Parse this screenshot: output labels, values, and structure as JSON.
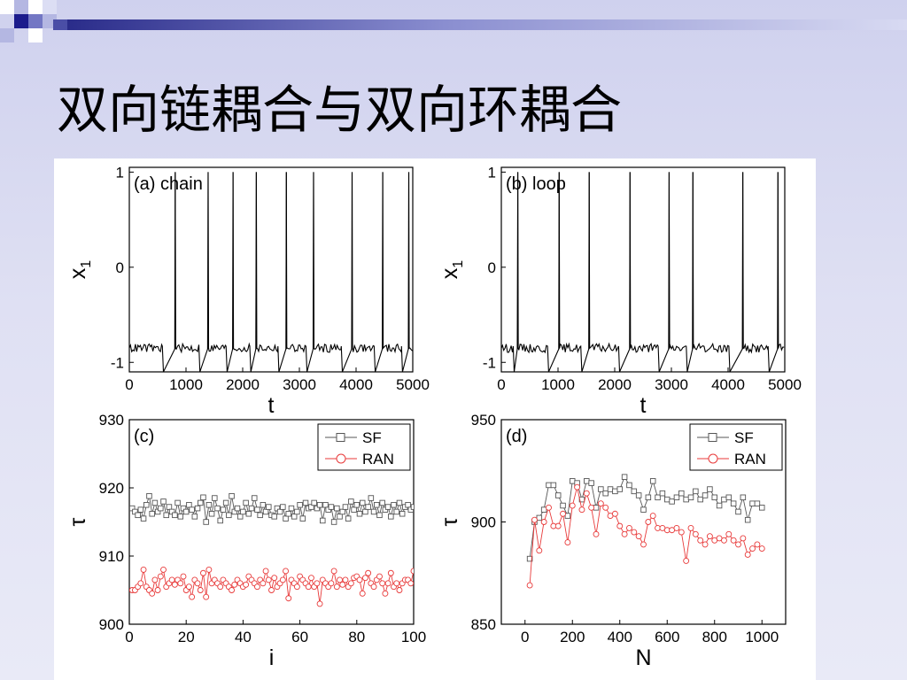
{
  "slide": {
    "title": "双向链耦合与双向环耦合",
    "colors": {
      "accent_dark": "#1c1c8c",
      "accent_mid": "#7377c4",
      "accent_light": "#b4b7e2"
    }
  },
  "chart_data": [
    {
      "panel_label": "(a) chain",
      "type": "line",
      "xlabel": "t",
      "ylabel": "x",
      "ylabel_subscript": "1",
      "xlim": [
        0,
        5000
      ],
      "ylim": [
        -1.1,
        1.05
      ],
      "xticks": [
        0,
        1000,
        2000,
        3000,
        4000,
        5000
      ],
      "yticks": [
        -1,
        0,
        1
      ],
      "spike_times": [
        810,
        1390,
        1830,
        2240,
        2770,
        3250,
        3930,
        4470,
        4930
      ],
      "baseline": -0.85,
      "trough": -1.1,
      "peak": 1.0,
      "color": "#000000"
    },
    {
      "panel_label": "(b) loop",
      "type": "line",
      "xlabel": "t",
      "ylabel": "x",
      "ylabel_subscript": "1",
      "xlim": [
        0,
        5000
      ],
      "ylim": [
        -1.1,
        1.05
      ],
      "xticks": [
        0,
        1000,
        2000,
        3000,
        4000,
        5000
      ],
      "yticks": [
        -1,
        0,
        1
      ],
      "spike_times": [
        290,
        1020,
        1550,
        2270,
        2960,
        3380,
        4260,
        4880
      ],
      "baseline": -0.85,
      "trough": -1.1,
      "peak": 1.0,
      "color": "#000000"
    },
    {
      "panel_label": "(c)",
      "type": "line",
      "xlabel": "i",
      "ylabel": "τ",
      "xlim": [
        0,
        100
      ],
      "ylim": [
        900,
        930
      ],
      "xticks": [
        0,
        20,
        40,
        60,
        80,
        100
      ],
      "yticks": [
        900,
        910,
        920,
        930
      ],
      "legend_position": "top-right",
      "series": [
        {
          "name": "SF",
          "marker": "square",
          "color": "#555555",
          "x": [
            1,
            2,
            3,
            4,
            5,
            6,
            7,
            8,
            9,
            10,
            11,
            12,
            13,
            14,
            15,
            16,
            17,
            18,
            19,
            20,
            21,
            22,
            23,
            24,
            25,
            26,
            27,
            28,
            29,
            30,
            31,
            32,
            33,
            34,
            35,
            36,
            37,
            38,
            39,
            40,
            41,
            42,
            43,
            44,
            45,
            46,
            47,
            48,
            49,
            50,
            51,
            52,
            53,
            54,
            55,
            56,
            57,
            58,
            59,
            60,
            61,
            62,
            63,
            64,
            65,
            66,
            67,
            68,
            69,
            70,
            71,
            72,
            73,
            74,
            75,
            76,
            77,
            78,
            79,
            80,
            81,
            82,
            83,
            84,
            85,
            86,
            87,
            88,
            89,
            90,
            91,
            92,
            93,
            94,
            95,
            96,
            97,
            98,
            99,
            100
          ],
          "values": [
            917,
            916.5,
            916,
            916.8,
            915.5,
            917.5,
            918.8,
            916.2,
            917.8,
            916.5,
            917,
            918,
            916,
            917.2,
            916.5,
            916,
            917.8,
            915.8,
            917,
            916.5,
            917.5,
            916.8,
            915.8,
            917,
            917.8,
            918.6,
            915,
            917.5,
            916.2,
            918.5,
            917,
            915.2,
            916.8,
            917.8,
            916,
            918.8,
            916.5,
            917,
            915.8,
            916.5,
            917.8,
            916.2,
            917,
            918.5,
            916.8,
            916,
            917.5,
            916.5,
            917.2,
            916,
            915.8,
            917,
            916.5,
            917.2,
            915.5,
            916.2,
            917,
            915.8,
            916.5,
            917.5,
            915.5,
            917.8,
            917,
            917.2,
            917.8,
            917,
            917.5,
            915.2,
            917.5,
            916.8,
            917.2,
            915,
            917,
            915.8,
            916.5,
            917.2,
            915.5,
            918,
            916.8,
            917.5,
            916.2,
            917.8,
            916.5,
            917.2,
            918.5,
            916.5,
            917.5,
            916,
            917.8,
            916.8,
            917.2,
            915.8,
            917.5,
            916.5,
            917.8,
            916.2,
            917.2,
            917.5,
            916.8,
            917.2
          ]
        },
        {
          "name": "RAN",
          "marker": "circle",
          "color": "#e83a3a",
          "x": [
            1,
            2,
            3,
            4,
            5,
            6,
            7,
            8,
            9,
            10,
            11,
            12,
            13,
            14,
            15,
            16,
            17,
            18,
            19,
            20,
            21,
            22,
            23,
            24,
            25,
            26,
            27,
            28,
            29,
            30,
            31,
            32,
            33,
            34,
            35,
            36,
            37,
            38,
            39,
            40,
            41,
            42,
            43,
            44,
            45,
            46,
            47,
            48,
            49,
            50,
            51,
            52,
            53,
            54,
            55,
            56,
            57,
            58,
            59,
            60,
            61,
            62,
            63,
            64,
            65,
            66,
            67,
            68,
            69,
            70,
            71,
            72,
            73,
            74,
            75,
            76,
            77,
            78,
            79,
            80,
            81,
            82,
            83,
            84,
            85,
            86,
            87,
            88,
            89,
            90,
            91,
            92,
            93,
            94,
            95,
            96,
            97,
            98,
            99,
            100
          ],
          "values": [
            905,
            905,
            905.5,
            906,
            908,
            905.5,
            905,
            904.5,
            906.5,
            905,
            907,
            908,
            905.5,
            906,
            906.5,
            905.8,
            906.5,
            906,
            907,
            905,
            905.5,
            904,
            906.5,
            906,
            905,
            907.5,
            904,
            908,
            906,
            906.5,
            906,
            905.5,
            906.5,
            906,
            905.5,
            905,
            905.8,
            906.5,
            906,
            905.5,
            905.8,
            907,
            906.5,
            906,
            905.5,
            906.5,
            906,
            907.8,
            906.5,
            905,
            906.8,
            905.5,
            906,
            906.5,
            907.8,
            903.8,
            906.5,
            906,
            905.5,
            907,
            906.5,
            906,
            905.5,
            906.8,
            905.5,
            906,
            903,
            906.5,
            906,
            905.5,
            906,
            907.8,
            905.5,
            906.5,
            905.8,
            906.5,
            905.5,
            906,
            906.8,
            907,
            906.5,
            904.5,
            906.8,
            907.5,
            906,
            905.5,
            906.5,
            907,
            906,
            904.5,
            906,
            907.5,
            905.5,
            906,
            905,
            906,
            906.5,
            906.5,
            906,
            907.8
          ]
        }
      ]
    },
    {
      "panel_label": "(d)",
      "type": "line",
      "xlabel": "N",
      "ylabel": "τ",
      "xlim": [
        -100,
        1100
      ],
      "ylim": [
        850,
        950
      ],
      "xticks": [
        0,
        200,
        400,
        600,
        800,
        1000
      ],
      "yticks": [
        850,
        900,
        950
      ],
      "legend_position": "top-right",
      "series": [
        {
          "name": "SF",
          "marker": "square",
          "color": "#555555",
          "x": [
            20,
            40,
            60,
            80,
            100,
            120,
            140,
            160,
            180,
            200,
            220,
            240,
            260,
            280,
            300,
            320,
            340,
            360,
            380,
            400,
            420,
            440,
            460,
            480,
            500,
            520,
            540,
            560,
            580,
            600,
            620,
            640,
            660,
            680,
            700,
            720,
            740,
            760,
            780,
            800,
            820,
            840,
            860,
            880,
            900,
            920,
            940,
            960,
            980,
            1000
          ],
          "values": [
            882,
            900,
            902,
            906,
            918,
            918,
            913,
            908,
            903,
            920,
            919,
            911,
            920,
            919,
            907,
            916,
            914,
            916,
            915,
            916,
            922,
            918,
            915,
            913,
            906,
            912,
            920,
            912,
            914,
            911,
            910,
            912,
            914,
            911,
            912,
            915,
            911,
            913,
            916,
            912,
            908,
            911,
            912,
            909,
            905,
            912,
            901,
            909,
            909,
            907
          ]
        },
        {
          "name": "RAN",
          "marker": "circle",
          "color": "#e83a3a",
          "x": [
            20,
            40,
            60,
            80,
            100,
            120,
            140,
            160,
            180,
            200,
            220,
            240,
            260,
            280,
            300,
            320,
            340,
            360,
            380,
            400,
            420,
            440,
            460,
            480,
            500,
            520,
            540,
            560,
            580,
            600,
            620,
            640,
            660,
            680,
            700,
            720,
            740,
            760,
            780,
            800,
            820,
            840,
            860,
            880,
            900,
            920,
            940,
            960,
            980,
            1000
          ],
          "values": [
            869,
            901,
            886,
            900,
            907,
            898,
            898,
            904,
            890,
            908,
            917,
            906,
            914,
            907,
            894,
            909,
            907,
            903,
            904,
            898,
            894,
            897,
            895,
            893,
            889,
            900,
            903,
            897,
            897,
            896,
            896,
            897,
            895,
            881,
            897,
            894,
            891,
            889,
            893,
            891,
            892,
            891,
            894,
            891,
            889,
            892,
            884,
            887,
            889,
            887
          ]
        }
      ]
    }
  ]
}
